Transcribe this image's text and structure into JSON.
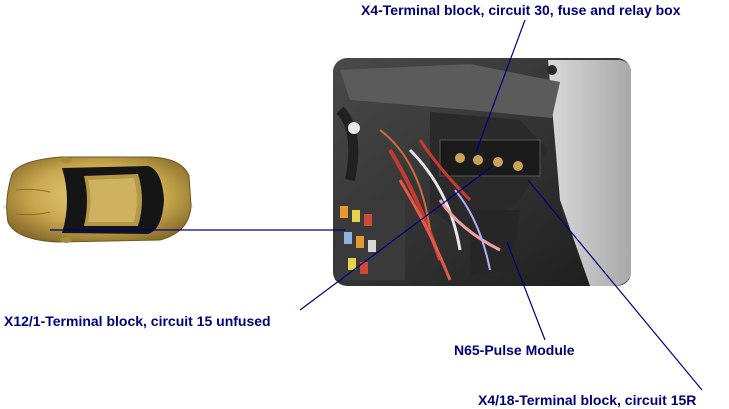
{
  "labels": {
    "x4": "X4-Terminal block, circuit 30, fuse and relay box",
    "x12_1": "X12/1-Terminal block, circuit 15 unfused",
    "n65": "N65-Pulse Module",
    "x4_18": "X4/18-Terminal block, circuit 15R"
  },
  "colors": {
    "label_text": "#00007a",
    "leader_line": "#000080",
    "car_body": "#c9a94f"
  }
}
